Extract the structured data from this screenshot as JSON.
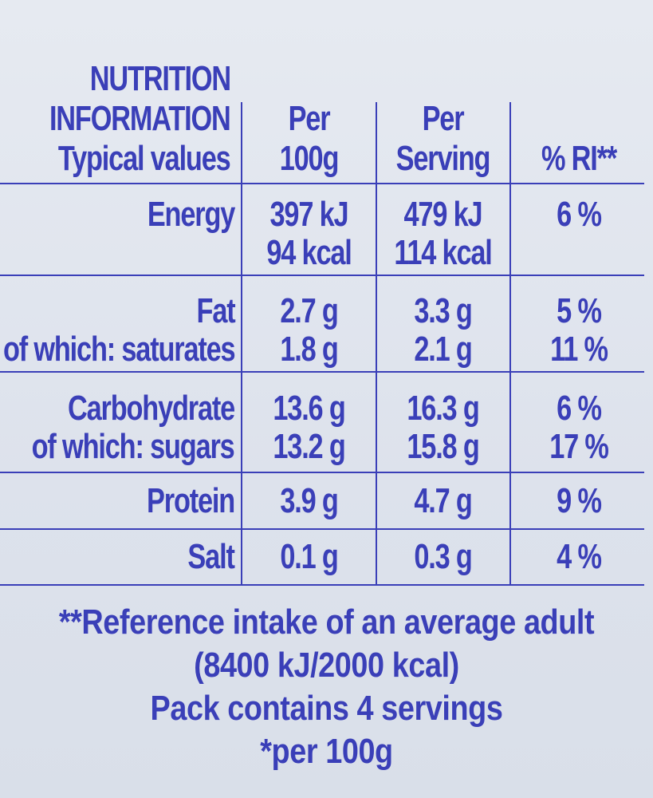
{
  "header": {
    "title_line1": "NUTRITION",
    "title_line2": "INFORMATION",
    "title_line3": "Typical values",
    "col_per100_line1": "Per",
    "col_per100_line2": "100g",
    "col_serving_line1": "Per",
    "col_serving_line2": "Serving",
    "col_ri": "% RI**"
  },
  "rows": [
    {
      "labels": [
        "Energy"
      ],
      "per100": [
        "397 kJ",
        "94 kcal"
      ],
      "serving": [
        "479 kJ",
        "114 kcal"
      ],
      "ri": [
        "6 %"
      ]
    },
    {
      "labels": [
        "Fat",
        "of which: saturates"
      ],
      "per100": [
        "2.7 g",
        "1.8 g"
      ],
      "serving": [
        "3.3 g",
        "2.1 g"
      ],
      "ri": [
        "5 %",
        "11 %"
      ]
    },
    {
      "labels": [
        "Carbohydrate",
        "of which: sugars"
      ],
      "per100": [
        "13.6 g",
        "13.2 g"
      ],
      "serving": [
        "16.3 g",
        "15.8 g"
      ],
      "ri": [
        "6 %",
        "17 %"
      ]
    },
    {
      "labels": [
        "Protein"
      ],
      "per100": [
        "3.9 g"
      ],
      "serving": [
        "4.7 g"
      ],
      "ri": [
        "9 %"
      ]
    },
    {
      "labels": [
        "Salt"
      ],
      "per100": [
        "0.1 g"
      ],
      "serving": [
        "0.3 g"
      ],
      "ri": [
        "4 %"
      ]
    }
  ],
  "footer": {
    "line1": "**Reference intake of an average adult",
    "line2": "(8400 kJ/2000 kcal)",
    "line3": "Pack contains 4 servings",
    "line4": "*per 100g"
  },
  "colors": {
    "ink": "#3a3fb8",
    "background": "#dfe4ee"
  }
}
